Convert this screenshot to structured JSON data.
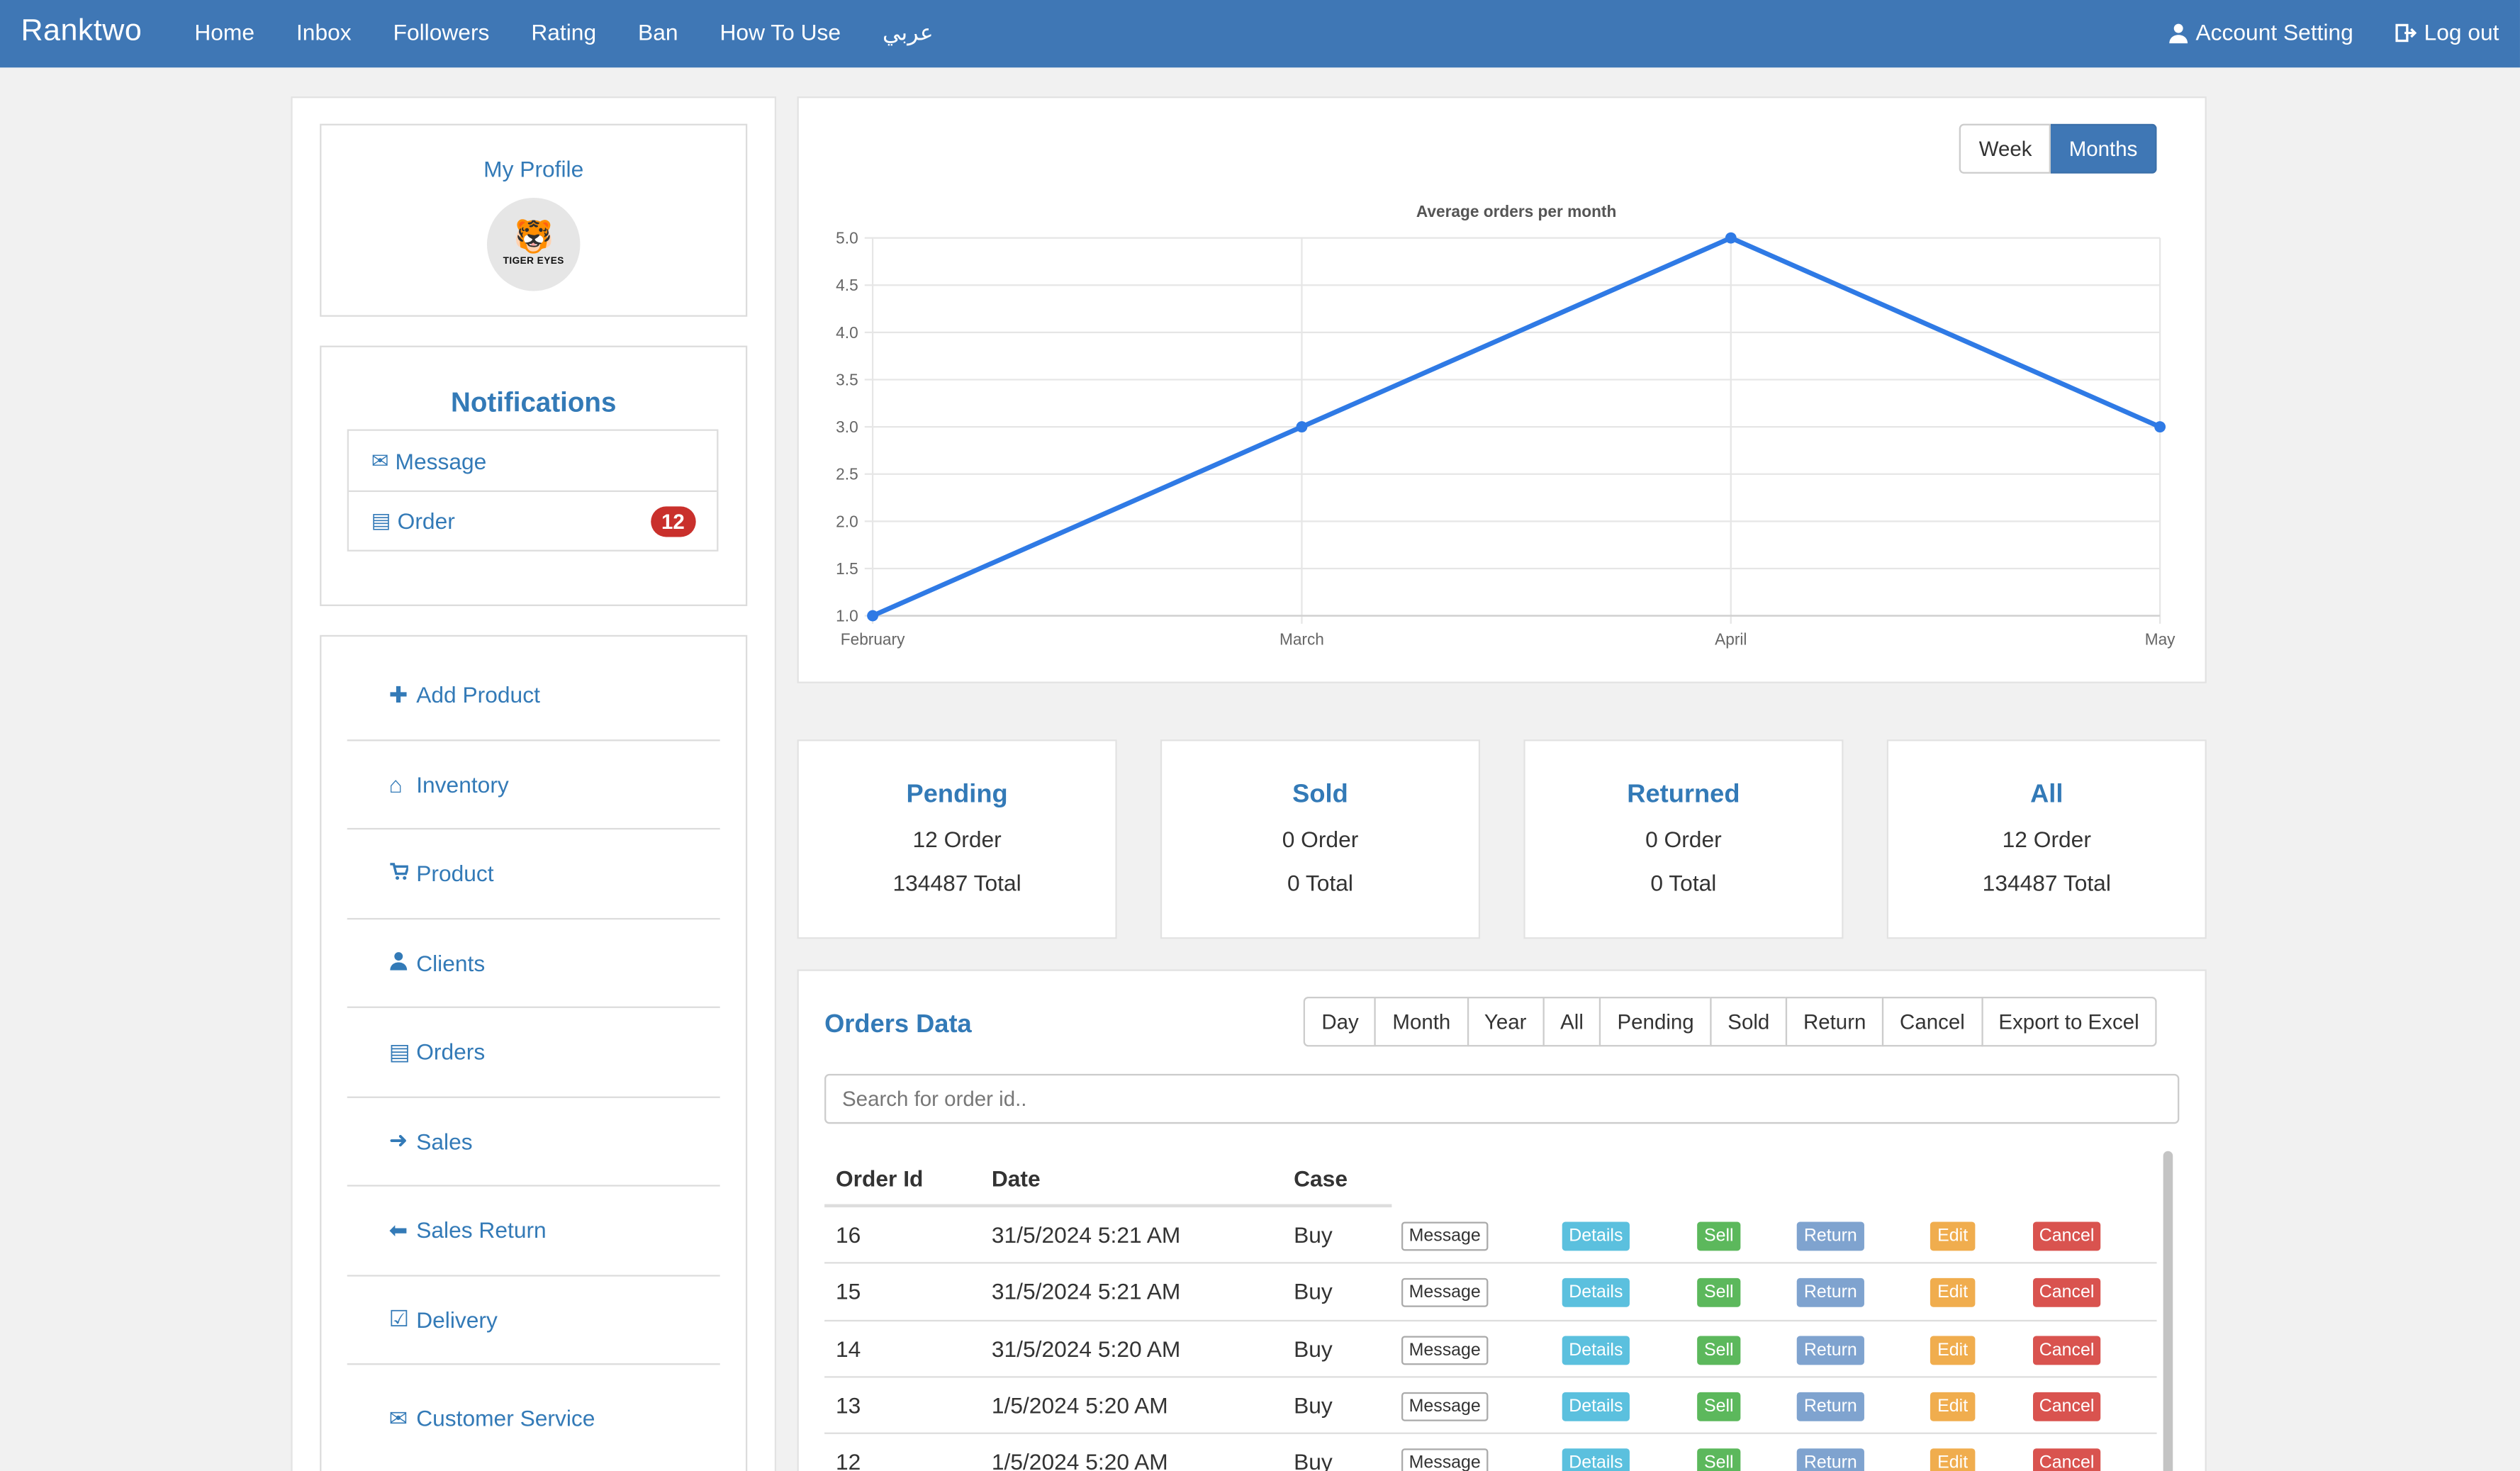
{
  "app": {
    "brand": "Ranktwo",
    "nav": [
      "Home",
      "Inbox",
      "Followers",
      "Rating",
      "Ban",
      "How To Use",
      "عربي"
    ],
    "account_setting": "Account Setting",
    "logout": "Log out"
  },
  "sidebar": {
    "profile_title": "My Profile",
    "avatar_text": "TIGER EYES",
    "notifications_title": "Notifications",
    "notifications": [
      {
        "label": "Message",
        "icon": "envelope-icon"
      },
      {
        "label": "Order",
        "icon": "list-icon",
        "badge": "12"
      }
    ],
    "menu": [
      {
        "label": "Add Product",
        "icon": "plus-icon"
      },
      {
        "label": "Inventory",
        "icon": "home-icon"
      },
      {
        "label": "Product",
        "icon": "cart-icon"
      },
      {
        "label": "Clients",
        "icon": "user-icon"
      },
      {
        "label": "Orders",
        "icon": "list-icon"
      },
      {
        "label": "Sales",
        "icon": "arrow-right-icon"
      },
      {
        "label": "Sales Return",
        "icon": "arrow-left-icon"
      },
      {
        "label": "Delivery",
        "icon": "check-square-icon"
      },
      {
        "label": "Customer Service",
        "icon": "envelope-icon"
      }
    ]
  },
  "chart_toggle": {
    "week": "Week",
    "months": "Months",
    "active": "Months"
  },
  "chart_data": {
    "type": "line",
    "title": "Average orders per month",
    "categories": [
      "February",
      "March",
      "April",
      "May"
    ],
    "series": [
      {
        "values": [
          1.0,
          3.0,
          5.0,
          3.0
        ],
        "color": "#2f7ae5"
      }
    ],
    "ylim": [
      1.0,
      5.0
    ],
    "yticks": [
      "1.0",
      "1.5",
      "2.0",
      "2.5",
      "3.0",
      "3.5",
      "4.0",
      "4.5",
      "5.0"
    ],
    "xlabel": "",
    "ylabel": "",
    "grid": true
  },
  "stats": [
    {
      "title": "Pending",
      "orders": "12 Order",
      "total": "134487 Total"
    },
    {
      "title": "Sold",
      "orders": "0 Order",
      "total": "0 Total"
    },
    {
      "title": "Returned",
      "orders": "0 Order",
      "total": "0 Total"
    },
    {
      "title": "All",
      "orders": "12 Order",
      "total": "134487 Total"
    }
  ],
  "orders": {
    "title": "Orders Data",
    "filters": [
      "Day",
      "Month",
      "Year",
      "All",
      "Pending",
      "Sold",
      "Return",
      "Cancel",
      "Export to Excel"
    ],
    "search_placeholder": "Search for order id..",
    "columns": [
      "Order Id",
      "Date",
      "Case"
    ],
    "actions": [
      "Message",
      "Details",
      "Sell",
      "Return",
      "Edit",
      "Cancel"
    ],
    "rows": [
      {
        "id": "16",
        "date": "31/5/2024 5:21 AM",
        "case": "Buy"
      },
      {
        "id": "15",
        "date": "31/5/2024 5:21 AM",
        "case": "Buy"
      },
      {
        "id": "14",
        "date": "31/5/2024 5:20 AM",
        "case": "Buy"
      },
      {
        "id": "13",
        "date": "1/5/2024 5:20 AM",
        "case": "Buy"
      },
      {
        "id": "12",
        "date": "1/5/2024 5:20 AM",
        "case": "Buy"
      }
    ]
  },
  "colors": {
    "navbar": "#3f77b5",
    "link": "#337ab7",
    "badge": "#c9302c"
  }
}
